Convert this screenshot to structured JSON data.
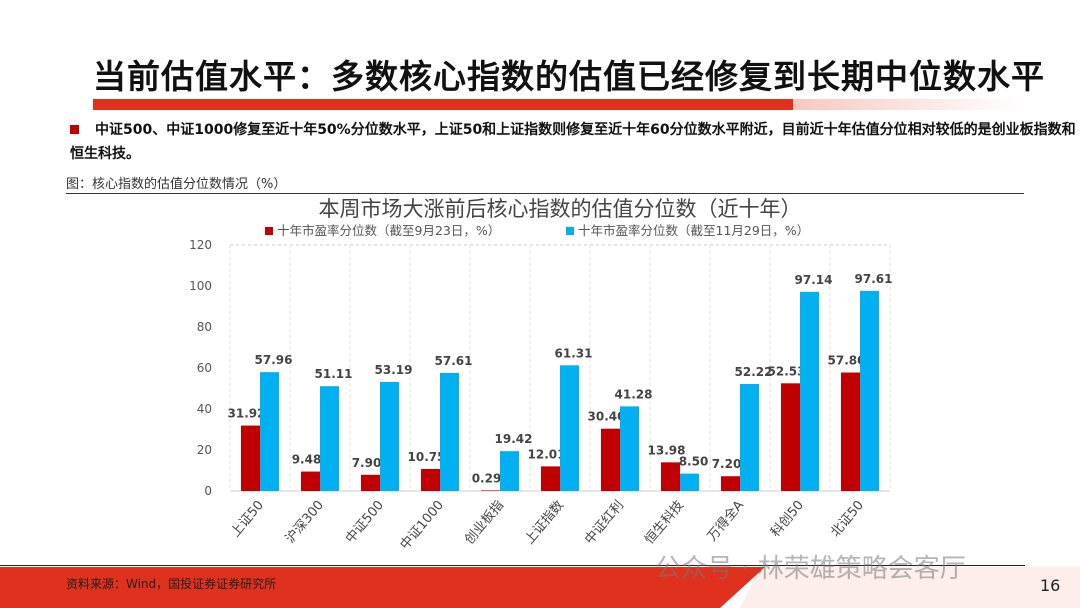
{
  "header": {
    "title": "当前估值水平：多数核心指数的估值已经修复到长期中位数水平"
  },
  "bullet": "中证500、中证1000修复至近十年50%分位数水平，上证50和上证指数则修复至近十年60分位数水平附近，目前近十年估值分位相对较低的是创业板指数和恒生科技。",
  "figure_caption": "图：核心指数的估值分位数情况（%）",
  "chart_data": {
    "type": "bar",
    "title": "本周市场大涨前后核心指数的估值分位数（近十年）",
    "categories": [
      "上证50",
      "沪深300",
      "中证500",
      "中证1000",
      "创业板指",
      "上证指数",
      "中证红利",
      "恒生科技",
      "万得全A",
      "科创50",
      "北证50"
    ],
    "series": [
      {
        "name": "十年市盈率分位数（截至9月23日，%）",
        "color": "#c00000",
        "values": [
          31.92,
          9.48,
          7.9,
          10.75,
          0.29,
          12.01,
          30.4,
          13.98,
          7.2,
          52.53,
          57.8
        ]
      },
      {
        "name": "十年市盈率分位数（截至11月29日，%）",
        "color": "#00b0f0",
        "values": [
          57.96,
          51.11,
          53.19,
          57.61,
          19.42,
          61.31,
          41.28,
          8.5,
          52.22,
          97.14,
          97.61
        ]
      }
    ],
    "yticks": [
      0,
      20,
      40,
      60,
      80,
      100,
      120
    ],
    "ylim": [
      0,
      120
    ],
    "grid": "vertical dashed",
    "legend": "top"
  },
  "footer": {
    "source": "资料来源：Wind，国投证券证券研究所",
    "page": "16",
    "watermark": "公众号 · 林荣雄策略会客厅"
  }
}
